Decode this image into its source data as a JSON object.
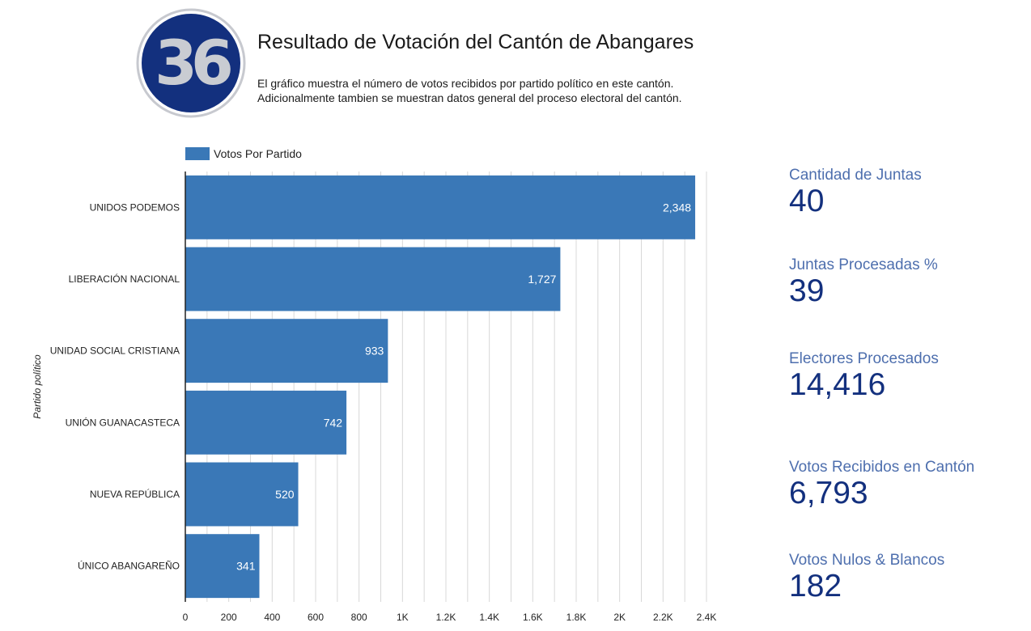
{
  "header": {
    "logo_text": "36",
    "title": "Resultado de Votación del Cantón de Abangares",
    "subtitle_lines": [
      "El gráfico muestra el número de votos recibidos por partido político en este cantón.",
      "Adicionalmente tambien se muestran datos general del proceso electoral del cantón."
    ]
  },
  "colors": {
    "bar": "#3a78b7",
    "stat_label": "#4e6fae",
    "stat_value": "#13307e",
    "logo_ring": "#13307e",
    "logo_digits": "#c9ccd2"
  },
  "chart_data": {
    "type": "bar",
    "orientation": "horizontal",
    "title": "",
    "xlabel": "",
    "ylabel": "Partido político",
    "categories": [
      "UNIDOS PODEMOS",
      "LIBERACIÓN NACIONAL",
      "UNIDAD SOCIAL CRISTIANA",
      "UNIÓN GUANACASTECA",
      "NUEVA REPÚBLICA",
      "ÚNICO ABANGAREÑO"
    ],
    "series": [
      {
        "name": "Votos Por Partido",
        "values": [
          2348,
          1727,
          933,
          742,
          520,
          341
        ]
      }
    ],
    "data_labels": [
      "2,348",
      "1,727",
      "933",
      "742",
      "520",
      "341"
    ],
    "xlim": [
      0,
      2400
    ],
    "x_ticks": [
      0,
      200,
      400,
      600,
      800,
      1000,
      1200,
      1400,
      1600,
      1800,
      2000,
      2200,
      2400
    ],
    "x_tick_labels": [
      "0",
      "200",
      "400",
      "600",
      "800",
      "1K",
      "1.2K",
      "1.4K",
      "1.6K",
      "1.8K",
      "2K",
      "2.2K",
      "2.4K"
    ],
    "x_minor_step": 100,
    "grid": true,
    "legend": "top-left"
  },
  "stats": [
    {
      "label": "Cantidad de Juntas",
      "value": "40"
    },
    {
      "label": "Juntas Procesadas %",
      "value": "39"
    },
    {
      "label": "Electores Procesados",
      "value": "14,416"
    },
    {
      "label": "Votos Recibidos en Cantón",
      "value": "6,793"
    },
    {
      "label": "Votos Nulos & Blancos",
      "value": "182"
    }
  ]
}
